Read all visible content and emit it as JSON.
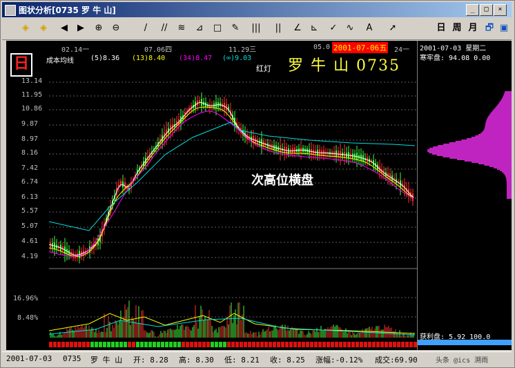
{
  "window": {
    "title": "图状分析[0735 罗 牛 山]"
  },
  "window_controls": [
    "_",
    "□",
    "×"
  ],
  "toolbar": {
    "tools": [
      {
        "name": "zoom-in-diamond-icon",
        "glyph": "◈"
      },
      {
        "name": "zoom-out-diamond-icon",
        "glyph": "◈"
      },
      {
        "name": "arrow-left-icon",
        "glyph": "◀"
      },
      {
        "name": "arrow-right-icon",
        "glyph": "▶"
      },
      {
        "name": "magnify-plus-icon",
        "glyph": "⊕"
      },
      {
        "name": "magnify-minus-icon",
        "glyph": "⊖"
      },
      {
        "name": "line-tool-icon",
        "glyph": "/"
      },
      {
        "name": "parallel-line-icon",
        "glyph": "//"
      },
      {
        "name": "fibonacci-icon",
        "glyph": "≋"
      },
      {
        "name": "channel-icon",
        "glyph": "⊿"
      },
      {
        "name": "rectangle-icon",
        "glyph": "□"
      },
      {
        "name": "pen-icon",
        "glyph": "✎"
      },
      {
        "name": "cycle-lines-icon",
        "glyph": "|||"
      },
      {
        "name": "percent-lines-icon",
        "glyph": "||"
      },
      {
        "name": "angle-icon",
        "glyph": "∠"
      },
      {
        "name": "speed-line-icon",
        "glyph": "⊾"
      },
      {
        "name": "check-icon",
        "glyph": "✓"
      },
      {
        "name": "wave-icon",
        "glyph": "∿"
      },
      {
        "name": "text-tool-icon",
        "glyph": "A"
      },
      {
        "name": "pointer-icon",
        "glyph": "➚"
      }
    ],
    "period_day": "日",
    "period_week": "周",
    "period_month": "月",
    "window_icon": "🗗",
    "extra_icon": "▣"
  },
  "chart": {
    "cursor_date": "2001-07-06五",
    "day_icon": "日",
    "indicator_name": "成本均线",
    "ma": [
      "(5)8.36",
      "(13)8.40",
      "(34)8.47",
      "(∞)9.03"
    ],
    "stock": "罗 牛 山 0735",
    "light": "红灯",
    "annotation": "次高位横盘",
    "time_labels": [
      "02.14一",
      "07.06四",
      "11.29三",
      "05.0",
      "24一"
    ],
    "price_ticks": [
      "13.14",
      "11.95",
      "10.86",
      "9.87",
      "8.97",
      "8.16",
      "7.42",
      "6.74",
      "6.13",
      "5.57",
      "5.07",
      "4.61",
      "4.19"
    ],
    "volume_ticks": [
      "16.96%",
      "8.48%"
    ]
  },
  "right_panel": {
    "date_line": "2001-07-03 星期二",
    "half_line": "寒牢盘: 94.08 0.00",
    "profit_line": "获利盘: 5.92 100.0"
  },
  "status": {
    "date": "2001-07-03",
    "code": "0735",
    "name": "罗 牛 山",
    "open": "开: 8.28",
    "high": "高: 8.30",
    "low": "低: 8.21",
    "close": "收: 8.25",
    "change": "涨幅:-0.12%",
    "turnover": "成交:69.90",
    "watermark": "头条 @ics 溯雨"
  },
  "colors": {
    "background": "#000000",
    "up": "#ff3030",
    "down": "#40ff40",
    "ma5": "#ffffff",
    "ma13": "#ffff00",
    "ma34": "#ff00ff",
    "ma_inf": "#00e0e0",
    "chip_profile": "#ff30ff"
  }
}
